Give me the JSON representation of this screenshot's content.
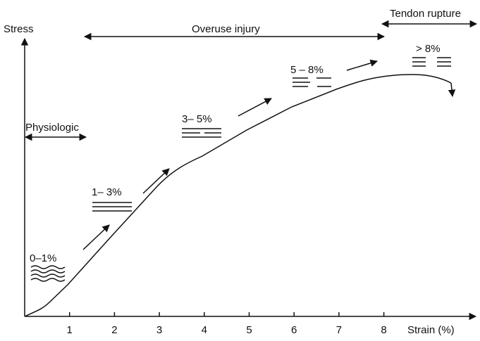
{
  "axes": {
    "y_label": "Stress",
    "x_label": "Strain (%)",
    "x_ticks": [
      1,
      2,
      3,
      4,
      5,
      6,
      7,
      8
    ]
  },
  "regions": {
    "physiologic": "Physiologic",
    "overuse": "Overuse injury",
    "rupture": "Tendon rupture"
  },
  "stages": [
    "0–1%",
    "1– 3%",
    "3– 5%",
    "5 – 8%",
    "> 8%"
  ]
}
